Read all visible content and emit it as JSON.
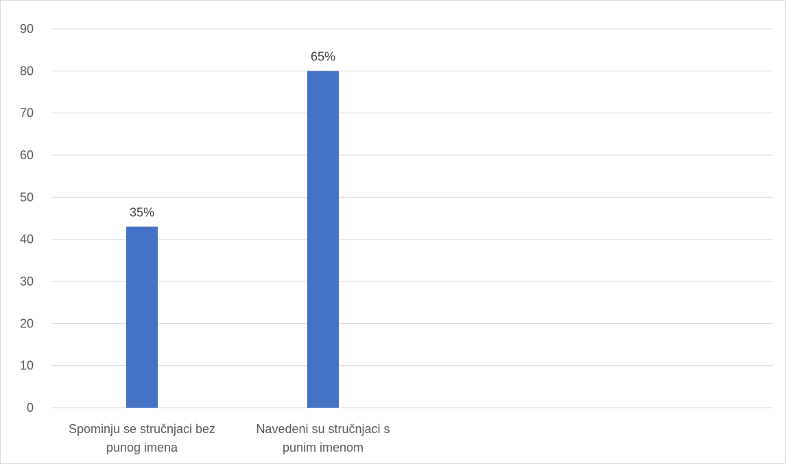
{
  "chart_data": {
    "type": "bar",
    "categories": [
      [
        "Spominju se stručnjaci bez",
        "punog imena"
      ],
      [
        "Navedeni su stručnjaci s",
        "punim imenom"
      ]
    ],
    "series": [
      {
        "values": [
          43,
          80
        ],
        "data_labels": [
          "35%",
          "65%"
        ],
        "color": "#4472c4"
      }
    ],
    "title": "",
    "xlabel": "",
    "ylabel": "",
    "ylim": [
      0,
      90
    ],
    "yticks": [
      0,
      10,
      20,
      30,
      40,
      50,
      60,
      70,
      80,
      90
    ],
    "grid": true,
    "legend": "none",
    "gridline_color": "#d9d9d9"
  }
}
